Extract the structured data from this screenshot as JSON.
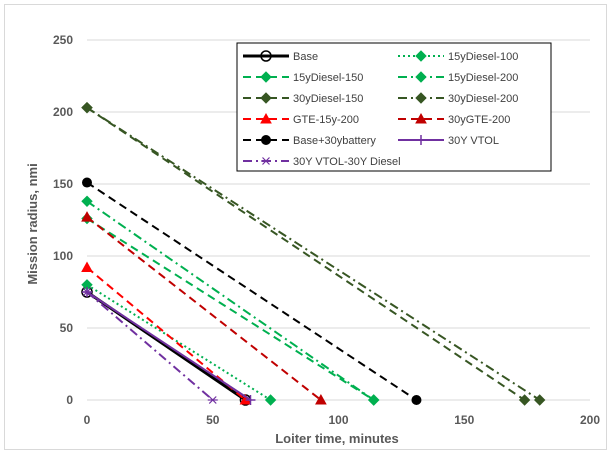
{
  "chart_data": {
    "type": "line",
    "xlabel": "Loiter time, minutes",
    "ylabel": "Mission radius, nmi",
    "xlim": [
      0,
      200
    ],
    "ylim": [
      0,
      250
    ],
    "xticks": [
      "0",
      "50",
      "100",
      "150",
      "200"
    ],
    "yticks": [
      "0",
      "50",
      "100",
      "150",
      "200",
      "250"
    ],
    "grid": "horizontal",
    "legend_position": "top-right",
    "series": [
      {
        "name": "Base",
        "color": "#000000",
        "dash": "solid",
        "marker": "open-circle",
        "width": 3,
        "points": [
          [
            0,
            75
          ],
          [
            63,
            0
          ]
        ]
      },
      {
        "name": "15yDiesel-100",
        "color": "#00b050",
        "dash": "dot",
        "marker": "diamond",
        "width": 2,
        "points": [
          [
            0,
            80
          ],
          [
            73,
            0
          ]
        ]
      },
      {
        "name": "15yDiesel-150",
        "color": "#00b050",
        "dash": "dash",
        "marker": "diamond",
        "width": 2,
        "points": [
          [
            0,
            126
          ],
          [
            114,
            0
          ]
        ]
      },
      {
        "name": "15yDiesel-200",
        "color": "#00b050",
        "dash": "dashdot",
        "marker": "diamond",
        "width": 2,
        "points": [
          [
            0,
            138
          ],
          [
            114,
            0
          ]
        ]
      },
      {
        "name": "30yDiesel-150",
        "color": "#375623",
        "dash": "dash",
        "marker": "diamond",
        "width": 2,
        "points": [
          [
            0,
            203
          ],
          [
            174,
            0
          ]
        ]
      },
      {
        "name": "30yDiesel-200",
        "color": "#375623",
        "dash": "dashdot",
        "marker": "diamond",
        "width": 2,
        "points": [
          [
            0,
            203
          ],
          [
            180,
            0
          ]
        ]
      },
      {
        "name": "GTE-15y-200",
        "color": "#ff0000",
        "dash": "dash",
        "marker": "triangle",
        "width": 2,
        "points": [
          [
            0,
            92
          ],
          [
            63,
            0
          ]
        ]
      },
      {
        "name": "30yGTE-200",
        "color": "#c00000",
        "dash": "dash",
        "marker": "triangle",
        "width": 2,
        "points": [
          [
            0,
            127
          ],
          [
            93,
            0
          ]
        ]
      },
      {
        "name": "Base+30ybattery",
        "color": "#000000",
        "dash": "dash",
        "marker": "circle",
        "width": 2,
        "points": [
          [
            0,
            151
          ],
          [
            131,
            0
          ]
        ]
      },
      {
        "name": "30Y VTOL",
        "color": "#7030a0",
        "dash": "solid",
        "marker": "plus",
        "width": 2,
        "points": [
          [
            0,
            75
          ],
          [
            65,
            0
          ]
        ]
      },
      {
        "name": "30Y VTOL-30Y Diesel",
        "color": "#7030a0",
        "dash": "dashdot",
        "marker": "asterisk",
        "width": 2,
        "points": [
          [
            0,
            75
          ],
          [
            50,
            0
          ]
        ]
      }
    ]
  }
}
